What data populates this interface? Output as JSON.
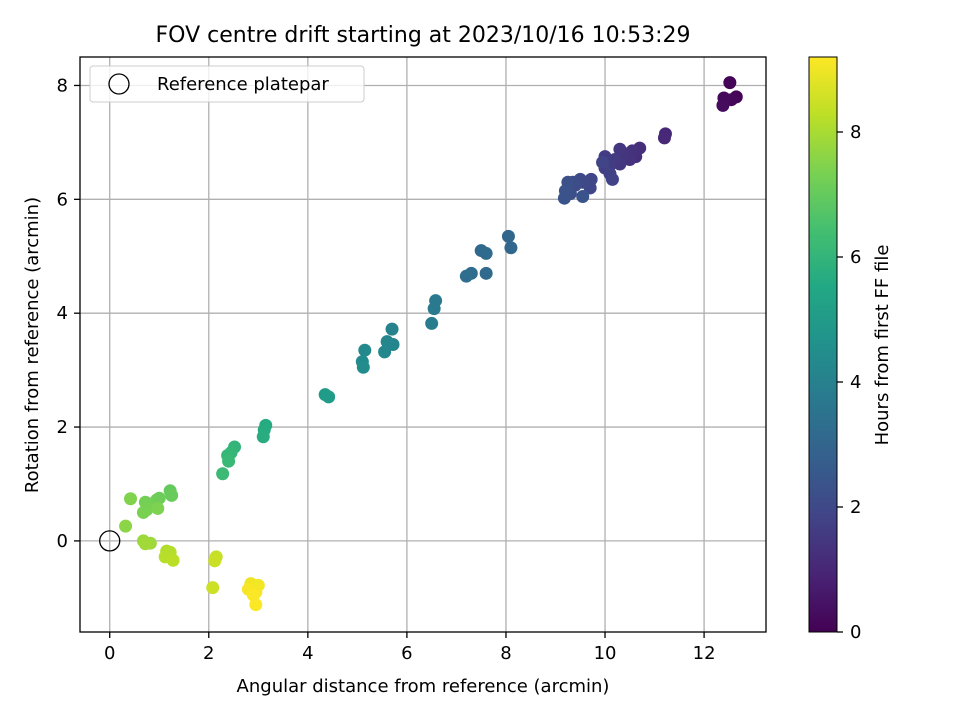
{
  "chart_data": {
    "type": "scatter",
    "title": "FOV centre drift starting at 2023/10/16 10:53:29",
    "xlabel": "Angular distance from reference (arcmin)",
    "ylabel": "Rotation from reference (arcmin)",
    "xlim": [
      -0.6,
      13.25
    ],
    "ylim": [
      -1.6,
      8.5
    ],
    "xticks": [
      0,
      2,
      4,
      6,
      8,
      10,
      12
    ],
    "yticks": [
      0,
      2,
      4,
      6,
      8
    ],
    "grid": true,
    "legend": {
      "position": "top-left",
      "entries": [
        {
          "label": "Reference platepar",
          "marker": "open-circle"
        }
      ]
    },
    "reference_point": {
      "x": 0,
      "y": 0
    },
    "colorbar": {
      "label": "Hours from first FF file",
      "colormap": "viridis",
      "range": [
        0,
        9.2
      ],
      "ticks": [
        0,
        2,
        4,
        6,
        8
      ]
    },
    "points": [
      {
        "x": 12.52,
        "y": 8.05,
        "c": 0.05
      },
      {
        "x": 12.65,
        "y": 7.8,
        "c": 0.1
      },
      {
        "x": 12.55,
        "y": 7.75,
        "c": 0.15
      },
      {
        "x": 12.4,
        "y": 7.78,
        "c": 0.2
      },
      {
        "x": 12.38,
        "y": 7.65,
        "c": 0.25
      },
      {
        "x": 11.22,
        "y": 7.15,
        "c": 1.0
      },
      {
        "x": 11.2,
        "y": 7.08,
        "c": 1.05
      },
      {
        "x": 10.7,
        "y": 6.9,
        "c": 1.2
      },
      {
        "x": 10.62,
        "y": 6.75,
        "c": 1.25
      },
      {
        "x": 10.55,
        "y": 6.85,
        "c": 1.3
      },
      {
        "x": 10.5,
        "y": 6.7,
        "c": 1.35
      },
      {
        "x": 10.4,
        "y": 6.8,
        "c": 1.4
      },
      {
        "x": 10.3,
        "y": 6.88,
        "c": 1.45
      },
      {
        "x": 10.3,
        "y": 6.62,
        "c": 1.5
      },
      {
        "x": 10.2,
        "y": 6.7,
        "c": 1.55
      },
      {
        "x": 10.1,
        "y": 6.6,
        "c": 1.6
      },
      {
        "x": 10.0,
        "y": 6.75,
        "c": 1.65
      },
      {
        "x": 10.0,
        "y": 6.55,
        "c": 1.7
      },
      {
        "x": 10.1,
        "y": 6.45,
        "c": 1.75
      },
      {
        "x": 10.15,
        "y": 6.35,
        "c": 1.8
      },
      {
        "x": 9.95,
        "y": 6.65,
        "c": 1.85
      },
      {
        "x": 9.72,
        "y": 6.35,
        "c": 1.9
      },
      {
        "x": 9.7,
        "y": 6.2,
        "c": 1.95
      },
      {
        "x": 9.55,
        "y": 6.3,
        "c": 2.0
      },
      {
        "x": 9.5,
        "y": 6.35,
        "c": 2.05
      },
      {
        "x": 9.4,
        "y": 6.25,
        "c": 2.1
      },
      {
        "x": 9.35,
        "y": 6.3,
        "c": 2.15
      },
      {
        "x": 9.3,
        "y": 6.1,
        "c": 2.2
      },
      {
        "x": 9.25,
        "y": 6.3,
        "c": 2.25
      },
      {
        "x": 9.2,
        "y": 6.15,
        "c": 2.3
      },
      {
        "x": 9.18,
        "y": 6.02,
        "c": 2.35
      },
      {
        "x": 9.55,
        "y": 6.05,
        "c": 2.4
      },
      {
        "x": 8.05,
        "y": 5.35,
        "c": 3.0
      },
      {
        "x": 8.1,
        "y": 5.15,
        "c": 3.05
      },
      {
        "x": 7.5,
        "y": 5.1,
        "c": 3.1
      },
      {
        "x": 7.6,
        "y": 5.05,
        "c": 3.15
      },
      {
        "x": 7.6,
        "y": 4.7,
        "c": 3.2
      },
      {
        "x": 7.3,
        "y": 4.7,
        "c": 3.25
      },
      {
        "x": 7.2,
        "y": 4.65,
        "c": 3.3
      },
      {
        "x": 6.58,
        "y": 4.22,
        "c": 3.7
      },
      {
        "x": 6.55,
        "y": 4.08,
        "c": 3.75
      },
      {
        "x": 6.5,
        "y": 3.82,
        "c": 3.8
      },
      {
        "x": 5.7,
        "y": 3.72,
        "c": 4.1
      },
      {
        "x": 5.72,
        "y": 3.45,
        "c": 4.15
      },
      {
        "x": 5.6,
        "y": 3.5,
        "c": 4.2
      },
      {
        "x": 5.55,
        "y": 3.32,
        "c": 4.25
      },
      {
        "x": 5.15,
        "y": 3.35,
        "c": 4.3
      },
      {
        "x": 5.1,
        "y": 3.15,
        "c": 4.35
      },
      {
        "x": 5.12,
        "y": 3.05,
        "c": 4.4
      },
      {
        "x": 4.35,
        "y": 2.57,
        "c": 5.0
      },
      {
        "x": 4.42,
        "y": 2.53,
        "c": 5.05
      },
      {
        "x": 3.15,
        "y": 2.03,
        "c": 5.6
      },
      {
        "x": 3.12,
        "y": 1.95,
        "c": 5.65
      },
      {
        "x": 3.1,
        "y": 1.83,
        "c": 5.7
      },
      {
        "x": 2.52,
        "y": 1.65,
        "c": 6.0
      },
      {
        "x": 2.45,
        "y": 1.55,
        "c": 6.05
      },
      {
        "x": 2.38,
        "y": 1.5,
        "c": 6.1
      },
      {
        "x": 2.4,
        "y": 1.4,
        "c": 6.15
      },
      {
        "x": 2.28,
        "y": 1.18,
        "c": 6.2
      },
      {
        "x": 1.22,
        "y": 0.88,
        "c": 7.0
      },
      {
        "x": 1.25,
        "y": 0.8,
        "c": 7.05
      },
      {
        "x": 1.0,
        "y": 0.75,
        "c": 7.1
      },
      {
        "x": 0.95,
        "y": 0.72,
        "c": 7.15
      },
      {
        "x": 0.8,
        "y": 0.65,
        "c": 7.2
      },
      {
        "x": 0.72,
        "y": 0.68,
        "c": 7.25
      },
      {
        "x": 0.75,
        "y": 0.55,
        "c": 7.3
      },
      {
        "x": 0.68,
        "y": 0.5,
        "c": 7.35
      },
      {
        "x": 0.97,
        "y": 0.57,
        "c": 7.4
      },
      {
        "x": 0.42,
        "y": 0.74,
        "c": 7.45
      },
      {
        "x": 0.32,
        "y": 0.26,
        "c": 7.6
      },
      {
        "x": 0.68,
        "y": 0.0,
        "c": 7.8
      },
      {
        "x": 0.82,
        "y": -0.04,
        "c": 7.85
      },
      {
        "x": 0.72,
        "y": -0.05,
        "c": 7.9
      },
      {
        "x": 1.15,
        "y": -0.18,
        "c": 8.1
      },
      {
        "x": 1.22,
        "y": -0.2,
        "c": 8.15
      },
      {
        "x": 1.12,
        "y": -0.28,
        "c": 8.2
      },
      {
        "x": 1.28,
        "y": -0.34,
        "c": 8.25
      },
      {
        "x": 2.15,
        "y": -0.28,
        "c": 8.4
      },
      {
        "x": 2.12,
        "y": -0.35,
        "c": 8.45
      },
      {
        "x": 2.08,
        "y": -0.82,
        "c": 8.5
      },
      {
        "x": 2.85,
        "y": -0.75,
        "c": 9.0
      },
      {
        "x": 3.0,
        "y": -0.78,
        "c": 9.05
      },
      {
        "x": 2.8,
        "y": -0.85,
        "c": 9.1
      },
      {
        "x": 2.95,
        "y": -0.9,
        "c": 9.1
      },
      {
        "x": 2.9,
        "y": -0.95,
        "c": 9.15
      },
      {
        "x": 2.95,
        "y": -1.12,
        "c": 9.15
      }
    ]
  }
}
